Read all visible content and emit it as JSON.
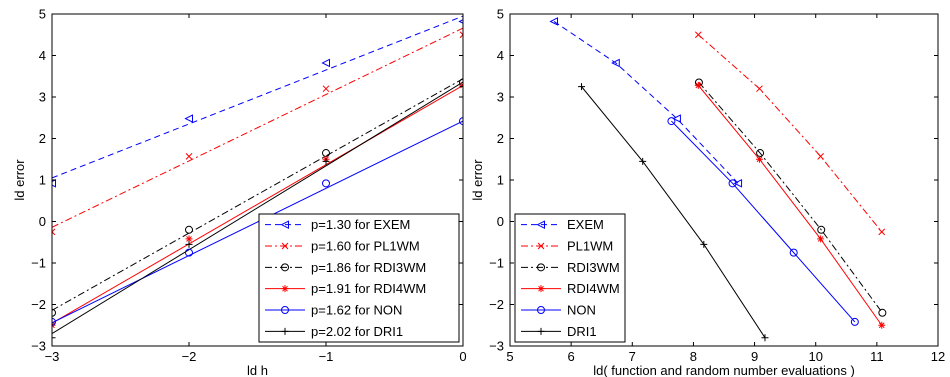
{
  "chart_data": [
    {
      "type": "line",
      "xlabel": "ld h",
      "ylabel": "ld error",
      "xlim": [
        -3,
        0
      ],
      "ylim": [
        -3,
        5
      ],
      "xticks": [
        -3,
        -2,
        -1,
        0
      ],
      "yticks": [
        -3,
        -2,
        -1,
        0,
        1,
        2,
        3,
        4,
        5
      ],
      "legend_position": "bottom-right",
      "series": [
        {
          "name": "p=1.30 for EXEM",
          "color": "#0000ff",
          "dash": "dashed",
          "marker": "triangle-left",
          "x": [
            -3,
            -2,
            -1,
            0
          ],
          "y": [
            0.92,
            2.48,
            3.82,
            4.82
          ],
          "fit_x": [
            -3,
            0
          ],
          "fit_y": [
            1.05,
            4.95
          ]
        },
        {
          "name": "p=1.60 for PL1WM",
          "color": "#ff0000",
          "dash": "dashdot",
          "marker": "x",
          "x": [
            -3,
            -2,
            -1,
            0
          ],
          "y": [
            -0.25,
            1.57,
            3.2,
            4.5
          ],
          "fit_x": [
            -3,
            0
          ],
          "fit_y": [
            -0.14,
            4.66
          ]
        },
        {
          "name": "p=1.86 for RDI3WM",
          "color": "#000000",
          "dash": "dashdot",
          "marker": "circle",
          "x": [
            -3,
            -2,
            -1,
            0
          ],
          "y": [
            -2.2,
            -0.2,
            1.65,
            3.35
          ],
          "fit_x": [
            -3,
            0
          ],
          "fit_y": [
            -2.14,
            3.44
          ]
        },
        {
          "name": "p=1.91 for RDI4WM",
          "color": "#ff0000",
          "dash": "solid",
          "marker": "asterisk",
          "x": [
            -3,
            -2,
            -1,
            0
          ],
          "y": [
            -2.5,
            -0.42,
            1.5,
            3.28
          ],
          "fit_x": [
            -3,
            0
          ],
          "fit_y": [
            -2.45,
            3.28
          ]
        },
        {
          "name": "p=1.62 for NON",
          "color": "#0000ff",
          "dash": "solid",
          "marker": "circle",
          "x": [
            -3,
            -2,
            -1,
            0
          ],
          "y": [
            -2.42,
            -0.75,
            0.92,
            2.42
          ],
          "fit_x": [
            -3,
            0
          ],
          "fit_y": [
            -2.44,
            2.42
          ]
        },
        {
          "name": "p=2.02 for DRI1",
          "color": "#000000",
          "dash": "solid",
          "marker": "plus",
          "x": [
            -3,
            -2,
            -1,
            0
          ],
          "y": [
            -2.8,
            -0.55,
            1.45,
            3.25
          ],
          "fit_x": [
            -3,
            0
          ],
          "fit_y": [
            -2.7,
            3.36
          ]
        }
      ]
    },
    {
      "type": "line",
      "xlabel": "ld( function and random number evaluations )",
      "ylabel": "ld error",
      "xlim": [
        5,
        12
      ],
      "ylim": [
        -3,
        5
      ],
      "xticks": [
        5,
        6,
        7,
        8,
        9,
        10,
        11,
        12
      ],
      "yticks": [
        -3,
        -2,
        -1,
        0,
        1,
        2,
        3,
        4,
        5
      ],
      "legend_position": "bottom-left",
      "series": [
        {
          "name": "EXEM",
          "color": "#0000ff",
          "dash": "dashed",
          "marker": "triangle-left",
          "x": [
            5.72,
            6.73,
            7.73,
            8.73
          ],
          "y": [
            4.82,
            3.82,
            2.48,
            0.92
          ]
        },
        {
          "name": "PL1WM",
          "color": "#ff0000",
          "dash": "dashdot",
          "marker": "x",
          "x": [
            8.08,
            9.08,
            10.08,
            11.08
          ],
          "y": [
            4.5,
            3.2,
            1.57,
            -0.25
          ]
        },
        {
          "name": "RDI3WM",
          "color": "#000000",
          "dash": "dashdot",
          "marker": "circle",
          "x": [
            8.09,
            9.09,
            10.09,
            11.09
          ],
          "y": [
            3.35,
            1.65,
            -0.2,
            -2.2
          ]
        },
        {
          "name": "RDI4WM",
          "color": "#ff0000",
          "dash": "solid",
          "marker": "asterisk",
          "x": [
            8.08,
            9.08,
            10.08,
            11.08
          ],
          "y": [
            3.28,
            1.5,
            -0.42,
            -2.5
          ]
        },
        {
          "name": "NON",
          "color": "#0000ff",
          "dash": "solid",
          "marker": "circle",
          "x": [
            7.64,
            8.64,
            9.64,
            10.64
          ],
          "y": [
            2.42,
            0.92,
            -0.75,
            -2.42
          ]
        },
        {
          "name": "DRI1",
          "color": "#000000",
          "dash": "solid",
          "marker": "plus",
          "x": [
            6.17,
            7.17,
            8.17,
            9.17
          ],
          "y": [
            3.25,
            1.45,
            -0.55,
            -2.8
          ]
        }
      ]
    }
  ]
}
